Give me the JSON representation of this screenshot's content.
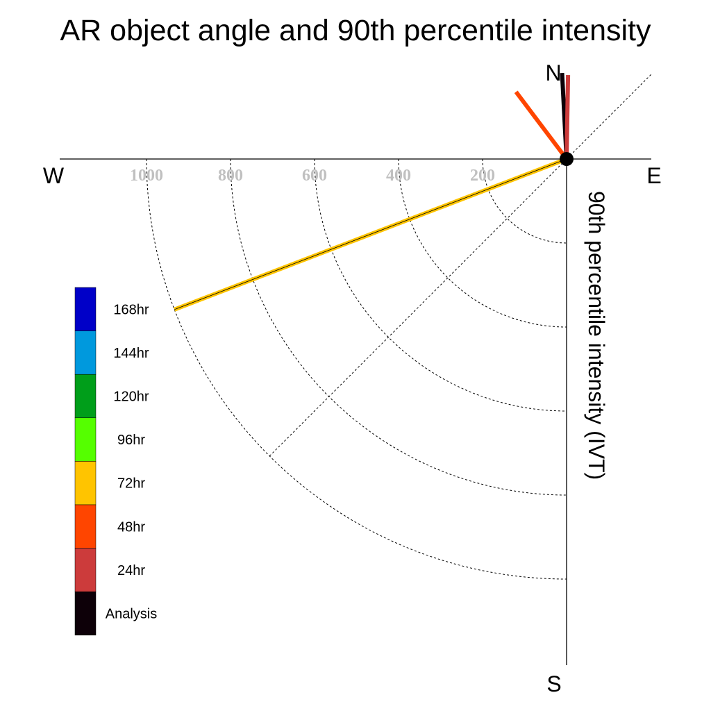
{
  "chart_data": {
    "type": "polar-vector",
    "title": "AR object angle and 90th percentile intensity",
    "ylabel": "90th percentile intensity (IVT)",
    "compass": {
      "north": "N",
      "east": "E",
      "south": "S",
      "west": "W"
    },
    "radial_ticks": [
      200,
      400,
      600,
      800,
      1000
    ],
    "radial_range": [
      0,
      1000
    ],
    "grid": true,
    "legend_placement": "left",
    "legend": [
      {
        "label": "168hr",
        "color": "#0000c8"
      },
      {
        "label": "144hr",
        "color": "#0099dd"
      },
      {
        "label": "120hr",
        "color": "#009e1a"
      },
      {
        "label": "96hr",
        "color": "#55ff00"
      },
      {
        "label": "72hr",
        "color": "#ffc400"
      },
      {
        "label": "48hr",
        "color": "#ff4500"
      },
      {
        "label": "24hr",
        "color": "#cc3b3b"
      },
      {
        "label": "Analysis",
        "color": "#0d0008"
      }
    ],
    "vectors": [
      {
        "series": "Analysis",
        "angle_deg": -3,
        "intensity": 205,
        "color": "#0d0008"
      },
      {
        "series": "24hr",
        "angle_deg": 1,
        "intensity": 200,
        "color": "#cc3b3b"
      },
      {
        "series": "48hr",
        "angle_deg": -37,
        "intensity": 200,
        "color": "#ff4500"
      },
      {
        "series": "72hr",
        "angle_deg": -111,
        "intensity": 1000,
        "color": "#ffc400"
      }
    ]
  }
}
